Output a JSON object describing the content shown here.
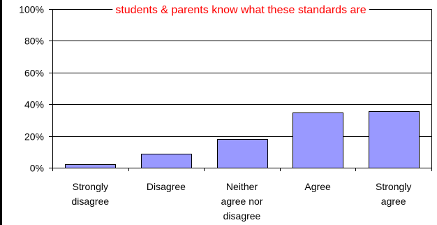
{
  "chart_data": {
    "type": "bar",
    "title": "students & parents know what these standards are",
    "categories": [
      [
        "Strongly",
        "disagree"
      ],
      [
        "Disagree"
      ],
      [
        "Neither",
        "agree nor",
        "disagree"
      ],
      [
        "Agree"
      ],
      [
        "Strongly",
        "agree"
      ]
    ],
    "values": [
      2,
      9,
      18,
      35,
      35.5
    ],
    "ylim": [
      0,
      100
    ],
    "yticks": [
      "0%",
      "20%",
      "40%",
      "60%",
      "80%",
      "100%"
    ],
    "grid": true,
    "colors": {
      "bar": "#9999ff",
      "title": "#ff0000",
      "axis": "#000000"
    }
  }
}
